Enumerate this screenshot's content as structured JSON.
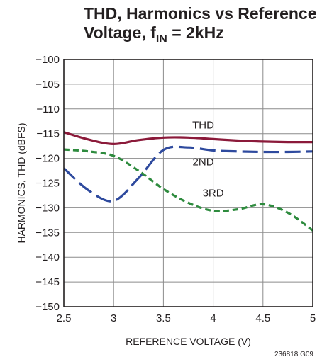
{
  "title": {
    "line1": "THD, Harmonics vs Reference",
    "line2_prefix": "Voltage, f",
    "line2_sub": "IN",
    "line2_suffix": " = 2kHz"
  },
  "figure_code": "236818 G09",
  "chart_data": {
    "type": "line",
    "title": "THD, Harmonics vs Reference Voltage, fIN = 2kHz",
    "xlabel": "REFERENCE VOLTAGE (V)",
    "ylabel": "HARMONICS, THD (dBFS)",
    "xlim": [
      2.5,
      5
    ],
    "ylim": [
      -150,
      -100
    ],
    "xticks": [
      2.5,
      3,
      3.5,
      4,
      4.5,
      5
    ],
    "xtick_labels": [
      "2.5",
      "3",
      "3.5",
      "4",
      "4.5",
      "5"
    ],
    "yticks": [
      -100,
      -105,
      -110,
      -115,
      -120,
      -125,
      -130,
      -135,
      -140,
      -145,
      -150
    ],
    "ytick_labels": [
      "−100",
      "−105",
      "−110",
      "−115",
      "−120",
      "−125",
      "−130",
      "−135",
      "−140",
      "−145",
      "−150"
    ],
    "grid": true,
    "legend": "inline labels",
    "series": [
      {
        "name": "THD",
        "color": "#8b1a3a",
        "style": "solid",
        "label_at": [
          3.9,
          -114
        ],
        "x": [
          2.5,
          2.75,
          3.0,
          3.25,
          3.5,
          3.75,
          4.0,
          4.25,
          4.5,
          4.75,
          5.0
        ],
        "y": [
          -114.7,
          -116.2,
          -117.1,
          -116.3,
          -115.8,
          -115.8,
          -116.1,
          -116.4,
          -116.6,
          -116.7,
          -116.7
        ]
      },
      {
        "name": "2ND",
        "color": "#2e4a9e",
        "style": "long-dash",
        "label_at": [
          3.9,
          -121.4
        ],
        "x": [
          2.5,
          2.75,
          3.0,
          3.25,
          3.5,
          3.75,
          4.0,
          4.25,
          4.5,
          4.75,
          5.0
        ],
        "y": [
          -122.0,
          -126.5,
          -128.6,
          -124.0,
          -118.3,
          -117.8,
          -118.4,
          -118.6,
          -118.7,
          -118.7,
          -118.6
        ]
      },
      {
        "name": "3RD",
        "color": "#2e8b3e",
        "style": "short-dash",
        "label_at": [
          4.0,
          -127.7
        ],
        "x": [
          2.5,
          2.75,
          3.0,
          3.25,
          3.5,
          3.75,
          4.0,
          4.25,
          4.5,
          4.75,
          5.0
        ],
        "y": [
          -118.2,
          -118.6,
          -119.5,
          -122.5,
          -126.2,
          -129.0,
          -130.6,
          -130.3,
          -129.3,
          -131.0,
          -134.6
        ]
      }
    ]
  }
}
